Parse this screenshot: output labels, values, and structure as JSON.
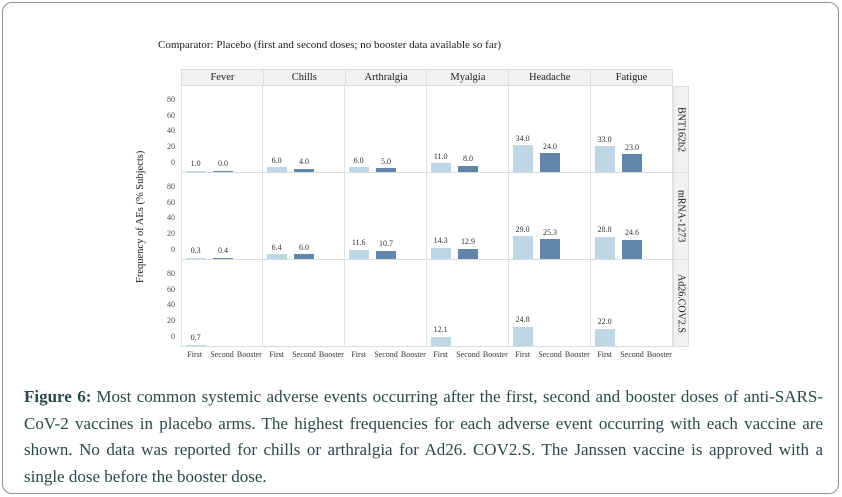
{
  "chart_data": {
    "type": "bar",
    "title": "Comparator: Placebo (first and second doses; no booster data available so far)",
    "ylabel": "Frequency of AEs (% Subjects)",
    "yticks": [
      0,
      20,
      40,
      60,
      80
    ],
    "ylim": [
      0,
      90
    ],
    "facet_columns": [
      "Fever",
      "Chills",
      "Arthralgia",
      "Myalgia",
      "Headache",
      "Fatigue"
    ],
    "facet_rows": [
      "BNT162b2",
      "mRNA-1273",
      "Ad26.COV2.S"
    ],
    "x": [
      "First",
      "Second",
      "Booster"
    ],
    "legend_position": "none",
    "grid": "off",
    "bar_colors": {
      "First": "#bfd6e4",
      "Second": "#6186a9"
    },
    "series": [
      {
        "name": "BNT162b2",
        "values": [
          [
            1.0,
            0.0,
            null
          ],
          [
            6.0,
            4.0,
            null
          ],
          [
            6.0,
            5.0,
            null
          ],
          [
            11.0,
            8.0,
            null
          ],
          [
            34.0,
            24.0,
            null
          ],
          [
            33.0,
            23.0,
            null
          ]
        ]
      },
      {
        "name": "mRNA-1273",
        "values": [
          [
            0.3,
            0.4,
            null
          ],
          [
            6.4,
            6.0,
            null
          ],
          [
            11.6,
            10.7,
            null
          ],
          [
            14.3,
            12.9,
            null
          ],
          [
            29.0,
            25.3,
            null
          ],
          [
            28.8,
            24.6,
            null
          ]
        ]
      },
      {
        "name": "Ad26.COV2.S",
        "values": [
          [
            0.7,
            null,
            null
          ],
          [
            null,
            null,
            null
          ],
          [
            null,
            null,
            null
          ],
          [
            12.1,
            null,
            null
          ],
          [
            24.8,
            null,
            null
          ],
          [
            22.0,
            null,
            null
          ]
        ]
      }
    ]
  },
  "caption": {
    "label": "Figure 6:",
    "text": "Most common systemic adverse events occurring after the first, second and booster doses of anti-SARS-CoV-2 vaccines in placebo arms. The highest frequencies for each adverse event occurring with each vaccine are shown. No data was reported for chills or arthralgia for Ad26. COV2.S. The Janssen vaccine is approved with a single dose before the booster dose."
  }
}
